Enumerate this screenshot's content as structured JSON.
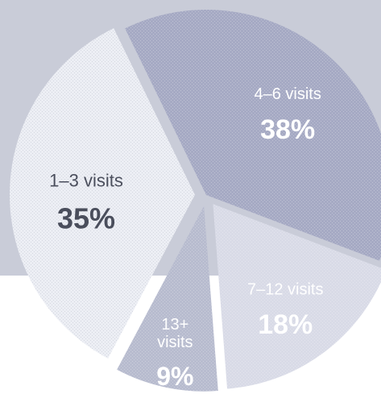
{
  "colors": {
    "background_band": "#c9ccd8",
    "page": "#ffffff",
    "text_dark": "#4a4e5c",
    "text_light": "#ffffff",
    "slice_4_6": "#a6aac4",
    "slice_1_3": "#eceef4",
    "slice_7_12": "#d9dbe7",
    "slice_13_plus": "#b8bccf"
  },
  "chart_data": {
    "type": "pie",
    "slices": [
      {
        "label": "4–6 visits",
        "value": 38,
        "value_label": "38%",
        "exploded": false
      },
      {
        "label": "7–12 visits",
        "value": 18,
        "value_label": "18%",
        "exploded": true
      },
      {
        "label_lines": [
          "13+",
          "visits"
        ],
        "value": 9,
        "value_label": "9%",
        "exploded": true
      },
      {
        "label": "1–3 visits",
        "value": 35,
        "value_label": "35%",
        "exploded": true
      }
    ],
    "start_angle_deg": 334,
    "direction": "clockwise",
    "legend": "none"
  }
}
